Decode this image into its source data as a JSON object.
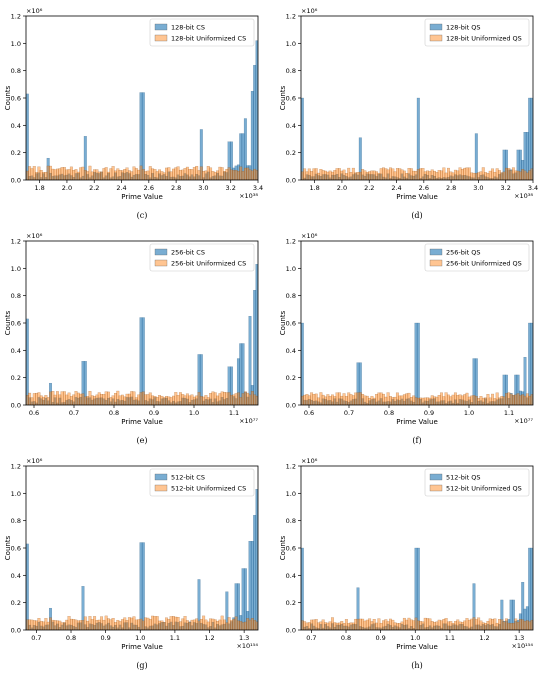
{
  "colors": {
    "cs": "#1f77b4",
    "uniform": "#ff7f0e"
  },
  "chart_data": [
    {
      "type": "bar",
      "caption": "(c)",
      "ylabel": "Counts",
      "xlabel": "Prime Value",
      "y_multiplier": "×10⁶",
      "x_multiplier": "×10³⁸",
      "xlim": [
        1.7,
        3.4
      ],
      "ylim": [
        0,
        1.2
      ],
      "xticks": [
        1.8,
        2.0,
        2.2,
        2.4,
        2.6,
        2.8,
        3.0,
        3.2,
        3.4
      ],
      "xtick_labels": [
        "1.8",
        "2.0",
        "2.2",
        "2.4",
        "2.6",
        "2.8",
        "3.0",
        "3.2",
        "3.4"
      ],
      "yticks": [
        0.0,
        0.2,
        0.4,
        0.6,
        0.8,
        1.0,
        1.2
      ],
      "ytick_labels": [
        "0.0",
        "0.2",
        "0.4",
        "0.6",
        "0.8",
        "1.0",
        "1.2"
      ],
      "legend_position": "top-right",
      "series": [
        {
          "name": "128-bit CS",
          "color": "#1f77b4",
          "baseline": 0.05,
          "peaks": [
            [
              1.7,
              0.63
            ],
            [
              1.86,
              0.16
            ],
            [
              2.13,
              0.32
            ],
            [
              2.55,
              0.64
            ],
            [
              2.98,
              0.37
            ],
            [
              3.2,
              0.28
            ],
            [
              3.28,
              0.34
            ],
            [
              3.31,
              0.45
            ],
            [
              3.36,
              0.65
            ],
            [
              3.38,
              0.84
            ],
            [
              3.4,
              1.02
            ]
          ]
        },
        {
          "name": "128-bit Uniformized CS",
          "color": "#ff7f0e",
          "baseline": 0.09
        }
      ]
    },
    {
      "type": "bar",
      "caption": "(d)",
      "ylabel": "Counts",
      "xlabel": "Prime Value",
      "y_multiplier": "×10⁶",
      "x_multiplier": "×10³⁸",
      "xlim": [
        1.7,
        3.4
      ],
      "ylim": [
        0,
        1.2
      ],
      "xticks": [
        1.8,
        2.0,
        2.2,
        2.4,
        2.6,
        2.8,
        3.0,
        3.2,
        3.4
      ],
      "xtick_labels": [
        "1.8",
        "2.0",
        "2.2",
        "2.4",
        "2.6",
        "2.8",
        "3.0",
        "3.2",
        "3.4"
      ],
      "yticks": [
        0.0,
        0.2,
        0.4,
        0.6,
        0.8,
        1.0,
        1.2
      ],
      "ytick_labels": [
        "0.0",
        "0.2",
        "0.4",
        "0.6",
        "0.8",
        "1.0",
        "1.2"
      ],
      "legend_position": "top-right",
      "series": [
        {
          "name": "128-bit QS",
          "color": "#1f77b4",
          "baseline": 0.04,
          "peaks": [
            [
              1.7,
              0.6
            ],
            [
              2.13,
              0.31
            ],
            [
              2.56,
              0.6
            ],
            [
              2.98,
              0.34
            ],
            [
              3.2,
              0.22
            ],
            [
              3.3,
              0.22
            ],
            [
              3.35,
              0.35
            ],
            [
              3.38,
              0.6
            ],
            [
              3.4,
              0.6
            ]
          ]
        },
        {
          "name": "128-bit Uniformized QS",
          "color": "#ff7f0e",
          "baseline": 0.08
        }
      ]
    },
    {
      "type": "bar",
      "caption": "(e)",
      "ylabel": "Counts",
      "xlabel": "Prime Value",
      "y_multiplier": "×10⁶",
      "x_multiplier": "×10⁷⁷",
      "xlim": [
        0.58,
        1.16
      ],
      "ylim": [
        0,
        1.2
      ],
      "xticks": [
        0.6,
        0.7,
        0.8,
        0.9,
        1.0,
        1.1
      ],
      "xtick_labels": [
        "0.6",
        "0.7",
        "0.8",
        "0.9",
        "1.0",
        "1.1"
      ],
      "yticks": [
        0.0,
        0.2,
        0.4,
        0.6,
        0.8,
        1.0,
        1.2
      ],
      "ytick_labels": [
        "0.0",
        "0.2",
        "0.4",
        "0.6",
        "0.8",
        "1.0",
        "1.2"
      ],
      "legend_position": "top-right",
      "series": [
        {
          "name": "256-bit CS",
          "color": "#1f77b4",
          "baseline": 0.05,
          "peaks": [
            [
              0.58,
              0.63
            ],
            [
              0.64,
              0.16
            ],
            [
              0.725,
              0.32
            ],
            [
              0.87,
              0.64
            ],
            [
              1.015,
              0.37
            ],
            [
              1.09,
              0.28
            ],
            [
              1.11,
              0.34
            ],
            [
              1.12,
              0.45
            ],
            [
              1.14,
              0.65
            ],
            [
              1.15,
              0.84
            ],
            [
              1.16,
              1.03
            ]
          ]
        },
        {
          "name": "256-bit Uniformized CS",
          "color": "#ff7f0e",
          "baseline": 0.09
        }
      ]
    },
    {
      "type": "bar",
      "caption": "(f)",
      "ylabel": "Counts",
      "xlabel": "Prime Value",
      "y_multiplier": "×10⁶",
      "x_multiplier": "×10⁷⁷",
      "xlim": [
        0.58,
        1.16
      ],
      "ylim": [
        0,
        1.2
      ],
      "xticks": [
        0.6,
        0.7,
        0.8,
        0.9,
        1.0,
        1.1
      ],
      "xtick_labels": [
        "0.6",
        "0.7",
        "0.8",
        "0.9",
        "1.0",
        "1.1"
      ],
      "yticks": [
        0.0,
        0.2,
        0.4,
        0.6,
        0.8,
        1.0,
        1.2
      ],
      "ytick_labels": [
        "0.0",
        "0.2",
        "0.4",
        "0.6",
        "0.8",
        "1.0",
        "1.2"
      ],
      "legend_position": "top-right",
      "series": [
        {
          "name": "256-bit QS",
          "color": "#1f77b4",
          "baseline": 0.04,
          "peaks": [
            [
              0.58,
              0.6
            ],
            [
              0.725,
              0.31
            ],
            [
              0.87,
              0.6
            ],
            [
              1.015,
              0.34
            ],
            [
              1.09,
              0.22
            ],
            [
              1.12,
              0.22
            ],
            [
              1.14,
              0.35
            ],
            [
              1.15,
              0.6
            ],
            [
              1.16,
              0.6
            ]
          ]
        },
        {
          "name": "256-bit Uniformized QS",
          "color": "#ff7f0e",
          "baseline": 0.08
        }
      ]
    },
    {
      "type": "bar",
      "caption": "(g)",
      "ylabel": "Counts",
      "xlabel": "Prime Value",
      "y_multiplier": "×10⁶",
      "x_multiplier": "×10¹⁵⁴",
      "xlim": [
        0.67,
        1.34
      ],
      "ylim": [
        0,
        1.2
      ],
      "xticks": [
        0.7,
        0.8,
        0.9,
        1.0,
        1.1,
        1.2,
        1.3
      ],
      "xtick_labels": [
        "0.7",
        "0.8",
        "0.9",
        "1.0",
        "1.1",
        "1.2",
        "1.3"
      ],
      "yticks": [
        0.0,
        0.2,
        0.4,
        0.6,
        0.8,
        1.0,
        1.2
      ],
      "ytick_labels": [
        "0.0",
        "0.2",
        "0.4",
        "0.6",
        "0.8",
        "1.0",
        "1.2"
      ],
      "legend_position": "top-right",
      "series": [
        {
          "name": "512-bit CS",
          "color": "#1f77b4",
          "baseline": 0.05,
          "peaks": [
            [
              0.67,
              0.63
            ],
            [
              0.74,
              0.16
            ],
            [
              0.835,
              0.32
            ],
            [
              1.005,
              0.64
            ],
            [
              1.17,
              0.37
            ],
            [
              1.25,
              0.28
            ],
            [
              1.28,
              0.34
            ],
            [
              1.3,
              0.45
            ],
            [
              1.32,
              0.65
            ],
            [
              1.33,
              0.84
            ],
            [
              1.34,
              1.03
            ]
          ]
        },
        {
          "name": "512-bit Uniformized CS",
          "color": "#ff7f0e",
          "baseline": 0.09
        }
      ]
    },
    {
      "type": "bar",
      "caption": "(h)",
      "ylabel": "Counts",
      "xlabel": "Prime Value",
      "y_multiplier": "×10⁶",
      "x_multiplier": "×10¹⁵⁴",
      "xlim": [
        0.67,
        1.34
      ],
      "ylim": [
        0,
        1.2
      ],
      "xticks": [
        0.7,
        0.8,
        0.9,
        1.0,
        1.1,
        1.2,
        1.3
      ],
      "xtick_labels": [
        "0.7",
        "0.8",
        "0.9",
        "1.0",
        "1.1",
        "1.2",
        "1.3"
      ],
      "yticks": [
        0.0,
        0.2,
        0.4,
        0.6,
        0.8,
        1.0,
        1.2
      ],
      "ytick_labels": [
        "0.0",
        "0.2",
        "0.4",
        "0.6",
        "0.8",
        "1.0",
        "1.2"
      ],
      "legend_position": "top-right",
      "series": [
        {
          "name": "512-bit QS",
          "color": "#1f77b4",
          "baseline": 0.04,
          "peaks": [
            [
              0.67,
              0.6
            ],
            [
              0.835,
              0.31
            ],
            [
              1.005,
              0.6
            ],
            [
              1.17,
              0.34
            ],
            [
              1.25,
              0.22
            ],
            [
              1.28,
              0.22
            ],
            [
              1.31,
              0.35
            ],
            [
              1.33,
              0.6
            ],
            [
              1.34,
              0.6
            ]
          ]
        },
        {
          "name": "512-bit Uniformized QS",
          "color": "#ff7f0e",
          "baseline": 0.08
        }
      ]
    }
  ]
}
